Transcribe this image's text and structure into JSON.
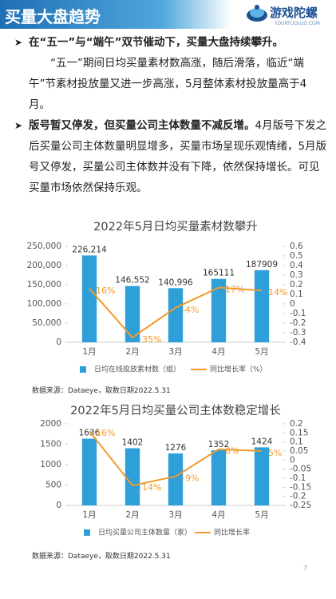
{
  "header": {
    "title": "买量大盘趋势",
    "logo": "游戏陀螺",
    "logo_sub": "YOURTUOLUO.COM"
  },
  "bullets": [
    {
      "lead": "在“五一”与“端午”双节催动下，买量大盘持续攀升。",
      "body": "“五一”期间日均买量素材数高涨，随后滑落，临近“端午”节素材投放量又进一步高涨，5月整体素材投放量高于4月。"
    },
    {
      "lead": "版号暂又停发，但买量公司主体数量不减反增。",
      "body": "4月版号下发之后买量公司主体数量明显增多，买量市场呈现乐观情绪，5月版号又停发，买量公司主体数并没有下降，依然保持增长。可见买量市场依然保持乐观。"
    }
  ],
  "chart_data": [
    {
      "type": "combo",
      "title": "2022年5月日均买量素材数攀升",
      "categories": [
        "1月",
        "2月",
        "3月",
        "4月",
        "5月"
      ],
      "series": [
        {
          "name": "日均在线投放素材数（组）",
          "type": "bar",
          "color": "#2e9fd8",
          "values": [
            226214,
            146552,
            140996,
            165111,
            187909
          ],
          "value_labels": [
            "226,214",
            "146,552",
            "140,996",
            "165111",
            "187909"
          ]
        },
        {
          "name": "同比增长率（%）",
          "type": "line",
          "axis": "y2",
          "color": "#f39a2b",
          "values": [
            0.16,
            -0.35,
            -0.04,
            0.17,
            0.14
          ],
          "value_labels": [
            "16%",
            "-35%",
            "-4%",
            "17%",
            "14%"
          ]
        }
      ],
      "ylim": [
        0,
        250000
      ],
      "yticks": [
        0,
        {
          "value": 50000,
          "label": "50,000"
        },
        {
          "value": 100000,
          "label": "100,000"
        },
        {
          "value": 150000,
          "label": "150,000"
        },
        {
          "value": 200000,
          "label": "200,000"
        },
        {
          "value": 250000,
          "label": "250,000"
        }
      ],
      "y2lim": [
        -0.4,
        0.6
      ],
      "y2ticks": [
        -0.4,
        -0.3,
        -0.2,
        -0.1,
        0,
        0.1,
        0.2,
        0.3,
        0.4,
        0.5,
        0.6
      ],
      "grid": false,
      "legend": "bottom"
    },
    {
      "type": "combo",
      "title": "2022年5月日均买量公司主体数稳定增长",
      "categories": [
        "1月",
        "2月",
        "3月",
        "4月",
        "5月"
      ],
      "series": [
        {
          "name": "日均买量公司主体数量（家）",
          "type": "bar",
          "color": "#2e9fd8",
          "values": [
            1636,
            1402,
            1276,
            1352,
            1424
          ]
        },
        {
          "name": "同比增长率",
          "type": "line",
          "axis": "y2",
          "color": "#f39a2b",
          "values": [
            0.16,
            -0.14,
            -0.09,
            0.06,
            0.05
          ],
          "value_labels": [
            "16%",
            "-14%",
            "-9%",
            "6%",
            "5%"
          ]
        }
      ],
      "ylim": [
        0,
        2000
      ],
      "yticks": [
        0,
        500,
        1000,
        1500,
        2000
      ],
      "y2lim": [
        -0.25,
        0.2
      ],
      "y2ticks": [
        -0.25,
        -0.2,
        -0.15,
        -0.1,
        -0.05,
        0,
        0.05,
        0.1,
        0.15,
        0.2
      ],
      "grid": false,
      "legend": "bottom"
    }
  ],
  "sources": [
    "数据来源：Dataeye，取数日期2022.5.31",
    "数据来源：Dataeye，取数日期2022.5.31"
  ],
  "page_number": "7"
}
